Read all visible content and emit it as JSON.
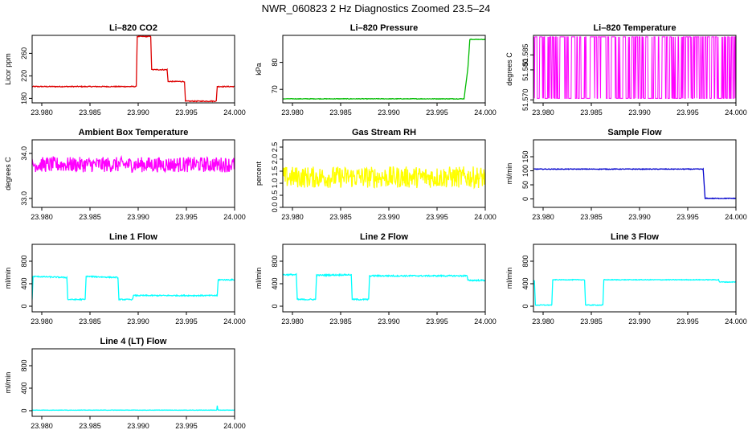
{
  "figure_title": "NWR_060823  2 Hz Diagnostics Zoomed 23.5–24",
  "chart_data": [
    {
      "type": "line",
      "title": "Li–820 CO2",
      "ylabel": "Licor ppm",
      "color": "#dd0000",
      "xlim": [
        23.979,
        24.0
      ],
      "ylim": [
        172,
        292
      ],
      "xticks": [
        23.98,
        23.985,
        23.99,
        23.995,
        24.0
      ],
      "xtick_labels": [
        "23.980",
        "23.985",
        "23.990",
        "23.995",
        "24.000"
      ],
      "yticks": [
        180,
        220,
        260
      ],
      "ytick_labels": [
        "180",
        "220",
        "260"
      ],
      "series": [
        {
          "x": [
            23.979,
            23.9898,
            23.9899,
            23.9913,
            23.9914,
            23.993,
            23.9931,
            23.9948,
            23.9949,
            23.9981,
            23.9982,
            24.0
          ],
          "y": [
            201,
            201,
            290,
            290,
            231,
            231,
            210,
            210,
            175,
            175,
            201,
            201
          ],
          "noise": 0.8
        }
      ]
    },
    {
      "type": "line",
      "title": "Li–820 Pressure",
      "ylabel": "kPa",
      "color": "#00bb00",
      "xlim": [
        23.979,
        24.0
      ],
      "ylim": [
        65,
        90
      ],
      "xticks": [
        23.98,
        23.985,
        23.99,
        23.995,
        24.0
      ],
      "xtick_labels": [
        "23.980",
        "23.985",
        "23.990",
        "23.995",
        "24.000"
      ],
      "yticks": [
        70,
        80
      ],
      "ytick_labels": [
        "70",
        "80"
      ],
      "series": [
        {
          "x": [
            23.979,
            23.9978,
            23.9982,
            23.9984,
            24.0
          ],
          "y": [
            66.5,
            66.5,
            78,
            88.5,
            88.5
          ],
          "noise": 0.1
        }
      ]
    },
    {
      "type": "line",
      "title": "Li–820 Temperature",
      "ylabel": "degrees C",
      "color": "#ff00ff",
      "xlim": [
        23.979,
        24.0
      ],
      "ylim": [
        51.569,
        51.5915
      ],
      "xticks": [
        23.98,
        23.985,
        23.99,
        23.995,
        24.0
      ],
      "xtick_labels": [
        "23.980",
        "23.985",
        "23.990",
        "23.995",
        "24.000"
      ],
      "yticks": [
        51.57,
        51.58,
        51.585
      ],
      "ytick_labels": [
        "51.570",
        "51.580",
        "51.585"
      ],
      "series": [
        {
          "x": [
            23.979,
            24.0
          ],
          "y": [
            51.5705,
            51.591
          ],
          "pattern": "binary"
        }
      ]
    },
    {
      "type": "line",
      "title": "Ambient Box Temperature",
      "ylabel": "degrees C",
      "color": "#ff00ff",
      "xlim": [
        23.979,
        24.0
      ],
      "ylim": [
        32.8,
        34.3
      ],
      "xticks": [
        23.98,
        23.985,
        23.99,
        23.995,
        24.0
      ],
      "xtick_labels": [
        "23.980",
        "23.985",
        "23.990",
        "23.995",
        "24.000"
      ],
      "yticks": [
        33.0,
        34.0
      ],
      "ytick_labels": [
        "33.0",
        "34.0"
      ],
      "series": [
        {
          "x": [
            23.979,
            24.0
          ],
          "y": [
            33.75,
            33.75
          ],
          "noise": 0.17
        }
      ]
    },
    {
      "type": "line",
      "title": "Gas Stream RH",
      "ylabel": "percent",
      "color": "#ffff00",
      "xlim": [
        23.979,
        24.0
      ],
      "ylim": [
        0,
        2.8
      ],
      "xticks": [
        23.98,
        23.985,
        23.99,
        23.995,
        24.0
      ],
      "xtick_labels": [
        "23.980",
        "23.985",
        "23.990",
        "23.995",
        "24.000"
      ],
      "yticks": [
        0.0,
        0.5,
        1.0,
        1.5,
        2.0,
        2.5
      ],
      "ytick_labels": [
        "0.0",
        "0.5",
        "1.0",
        "1.5",
        "2.0",
        "2.5"
      ],
      "series": [
        {
          "x": [
            23.979,
            24.0
          ],
          "y": [
            1.25,
            1.25
          ],
          "noise": 0.45
        }
      ]
    },
    {
      "type": "line",
      "title": "Sample Flow",
      "ylabel": "ml/min",
      "color": "#0000cc",
      "xlim": [
        23.979,
        24.0
      ],
      "ylim": [
        -30,
        210
      ],
      "xticks": [
        23.98,
        23.985,
        23.99,
        23.995,
        24.0
      ],
      "xtick_labels": [
        "23.980",
        "23.985",
        "23.990",
        "23.995",
        "24.000"
      ],
      "yticks": [
        0,
        50,
        100,
        150
      ],
      "ytick_labels": [
        "0",
        "50",
        "100",
        "150"
      ],
      "series": [
        {
          "x": [
            23.979,
            23.9966,
            23.9968,
            24.0
          ],
          "y": [
            106,
            106,
            2,
            2
          ],
          "noise": 1.2
        }
      ]
    },
    {
      "type": "line",
      "title": "Line 1 Flow",
      "ylabel": "ml/min",
      "color": "#00ffff",
      "xlim": [
        23.979,
        24.0
      ],
      "ylim": [
        -100,
        1100
      ],
      "xticks": [
        23.98,
        23.985,
        23.99,
        23.995,
        24.0
      ],
      "xtick_labels": [
        "23.980",
        "23.985",
        "23.990",
        "23.995",
        "24.000"
      ],
      "yticks": [
        0,
        400,
        800
      ],
      "ytick_labels": [
        "0",
        "400",
        "800"
      ],
      "series": [
        {
          "x": [
            23.979,
            23.9791,
            23.9826,
            23.9827,
            23.9845,
            23.9846,
            23.9879,
            23.988,
            23.9894,
            23.9895,
            23.9982,
            23.9983,
            24.0
          ],
          "y": [
            120,
            530,
            510,
            120,
            120,
            530,
            510,
            120,
            120,
            190,
            190,
            470,
            470
          ],
          "noise": 10
        }
      ]
    },
    {
      "type": "line",
      "title": "Line 2 Flow",
      "ylabel": "ml/min",
      "color": "#00ffff",
      "xlim": [
        23.979,
        24.0
      ],
      "ylim": [
        -100,
        1100
      ],
      "xticks": [
        23.98,
        23.985,
        23.99,
        23.995,
        24.0
      ],
      "xtick_labels": [
        "23.980",
        "23.985",
        "23.990",
        "23.995",
        "24.000"
      ],
      "yticks": [
        0,
        400,
        800
      ],
      "ytick_labels": [
        "0",
        "400",
        "800"
      ],
      "series": [
        {
          "x": [
            23.979,
            23.9804,
            23.9805,
            23.9824,
            23.9825,
            23.9861,
            23.9862,
            23.9879,
            23.988,
            23.9981,
            23.9982,
            24.0
          ],
          "y": [
            560,
            560,
            120,
            120,
            550,
            560,
            120,
            120,
            540,
            540,
            460,
            460
          ],
          "noise": 12
        }
      ]
    },
    {
      "type": "line",
      "title": "Line 3 Flow",
      "ylabel": "ml/min",
      "color": "#00ffff",
      "xlim": [
        23.979,
        24.0
      ],
      "ylim": [
        -100,
        1100
      ],
      "xticks": [
        23.98,
        23.985,
        23.99,
        23.995,
        24.0
      ],
      "xtick_labels": [
        "23.980",
        "23.985",
        "23.990",
        "23.995",
        "24.000"
      ],
      "yticks": [
        0,
        400,
        800
      ],
      "ytick_labels": [
        "0",
        "400",
        "800"
      ],
      "series": [
        {
          "x": [
            23.979,
            23.9791,
            23.9792,
            23.9809,
            23.981,
            23.9843,
            23.9844,
            23.9862,
            23.9863,
            23.9982,
            23.9983,
            24.0
          ],
          "y": [
            450,
            450,
            20,
            20,
            470,
            470,
            20,
            20,
            470,
            470,
            430,
            430
          ],
          "noise": 6
        }
      ]
    },
    {
      "type": "line",
      "title": "Line 4 (LT) Flow",
      "ylabel": "ml/min",
      "color": "#00ffff",
      "xlim": [
        23.979,
        24.0
      ],
      "ylim": [
        -100,
        1100
      ],
      "xticks": [
        23.98,
        23.985,
        23.99,
        23.995,
        24.0
      ],
      "xtick_labels": [
        "23.980",
        "23.985",
        "23.990",
        "23.995",
        "24.000"
      ],
      "yticks": [
        0,
        400,
        800
      ],
      "ytick_labels": [
        "0",
        "400",
        "800"
      ],
      "series": [
        {
          "x": [
            23.979,
            23.99815,
            23.9982,
            23.99825,
            23.9983,
            24.0
          ],
          "y": [
            10,
            10,
            90,
            30,
            10,
            10
          ],
          "noise": 3
        }
      ]
    }
  ]
}
